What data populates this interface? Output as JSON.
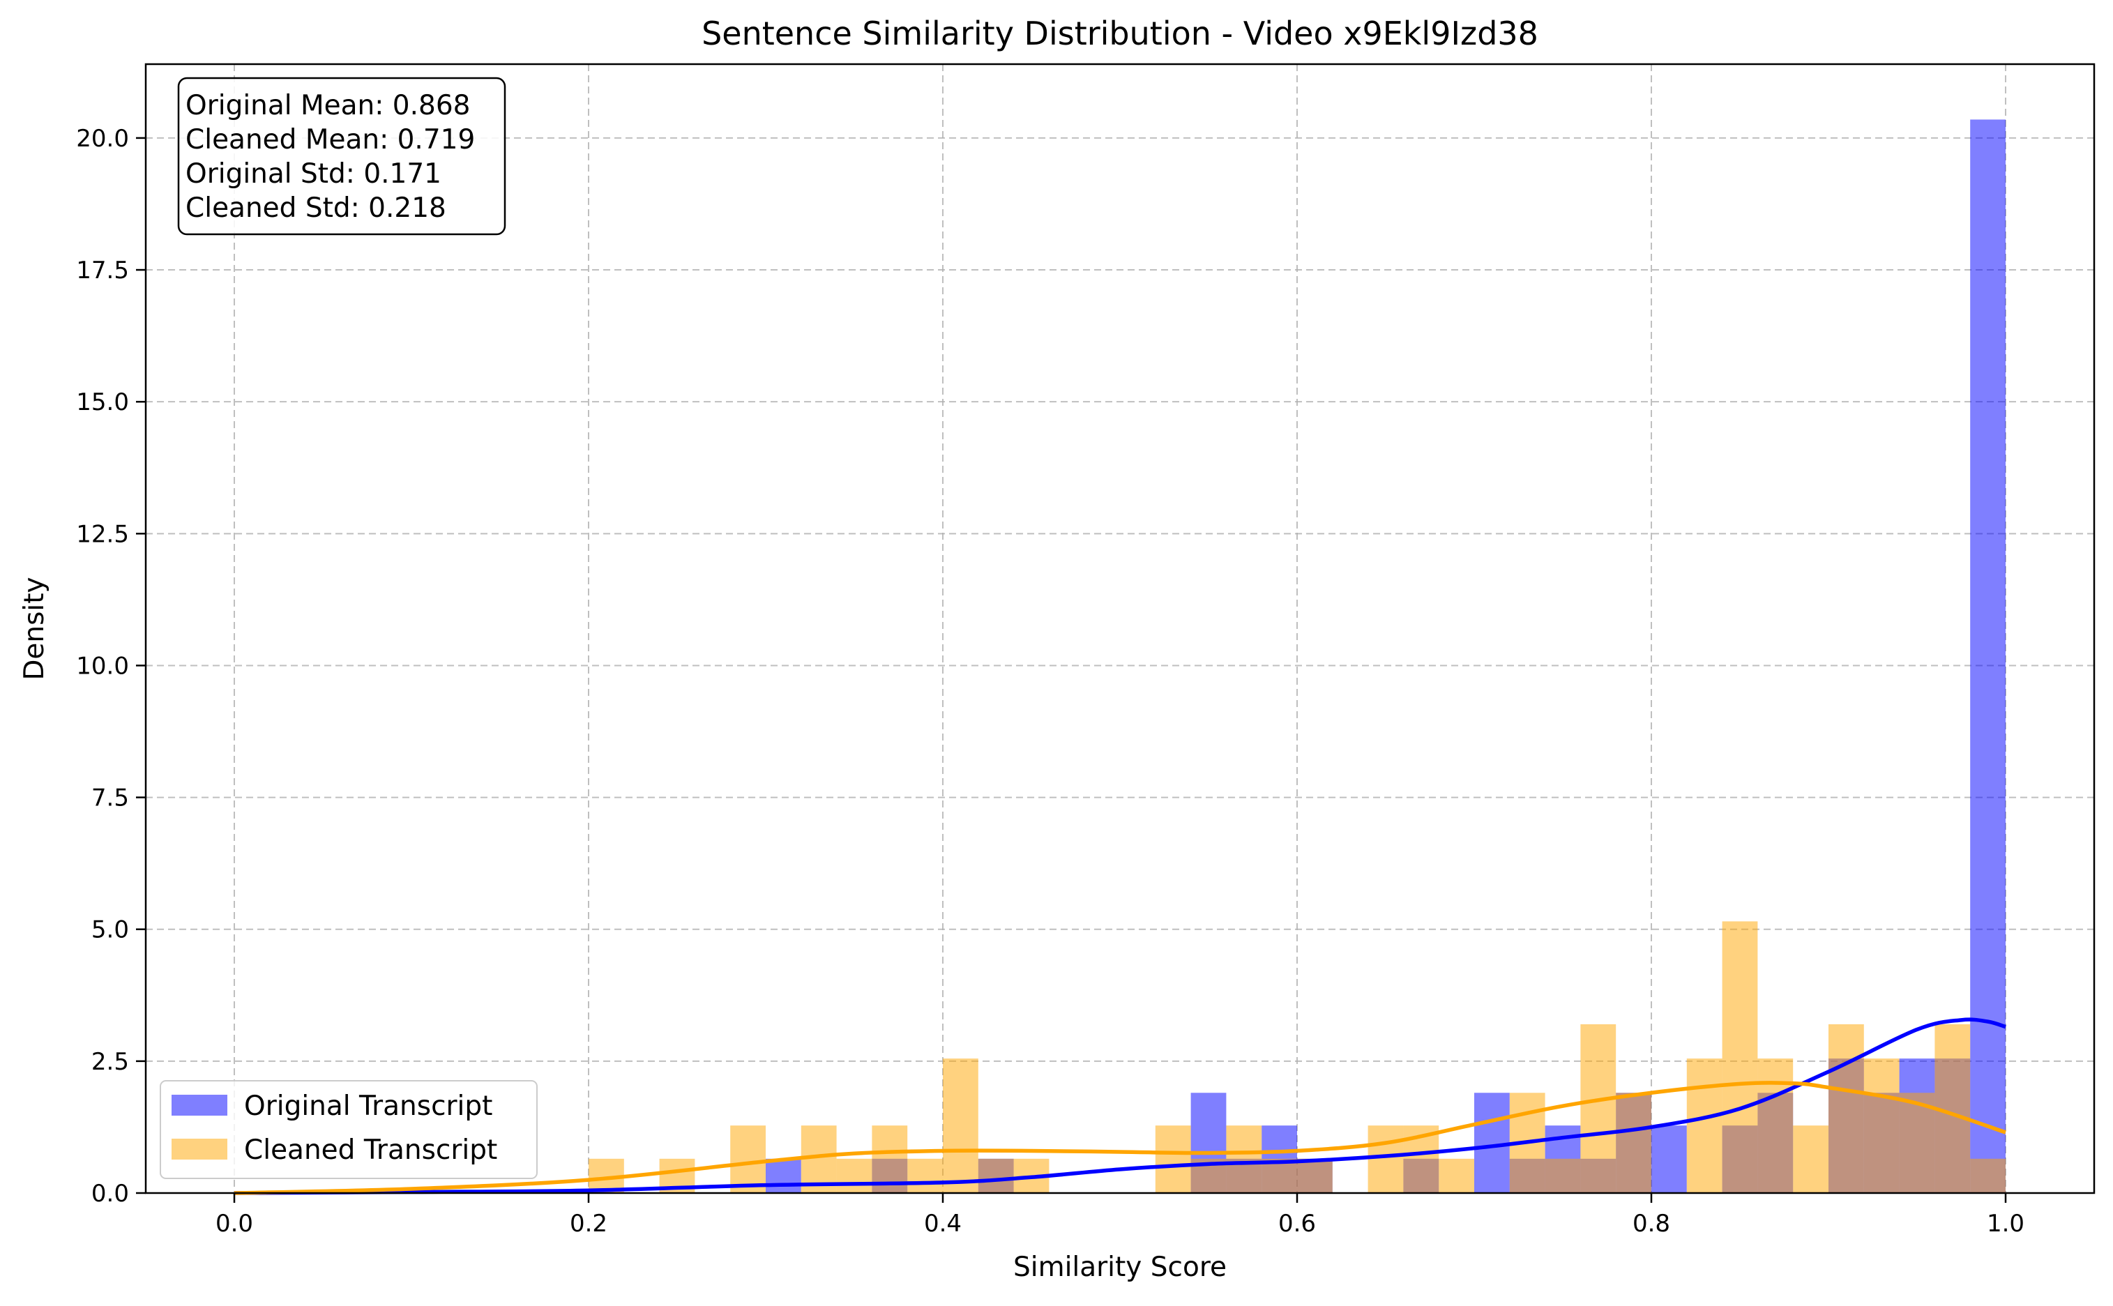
{
  "chart_data": {
    "type": "histogram",
    "title": "Sentence Similarity Distribution - Video x9Ekl9Izd38",
    "xlabel": "Similarity Score",
    "ylabel": "Density",
    "xlim": [
      -0.05,
      1.05
    ],
    "ylim": [
      0,
      21.4
    ],
    "xticks": [
      0.0,
      0.2,
      0.4,
      0.6,
      0.8,
      1.0
    ],
    "xtick_labels": [
      "0.0",
      "0.2",
      "0.4",
      "0.6",
      "0.8",
      "1.0"
    ],
    "yticks": [
      0,
      2.5,
      5,
      7.5,
      10,
      12.5,
      15,
      17.5,
      20
    ],
    "ytick_labels": [
      "0.0",
      "2.5",
      "5.0",
      "7.5",
      "10.0",
      "12.5",
      "15.0",
      "17.5",
      "20.0"
    ],
    "grid": true,
    "legend_position": "lower-left",
    "bin_width": 0.02,
    "stats_box": [
      "Original Mean: 0.868",
      "Cleaned Mean: 0.719",
      "Original Std: 0.171",
      "Cleaned Std: 0.218"
    ],
    "series": [
      {
        "name": "Original Transcript",
        "color": "#0000ff",
        "kde_color": "#0000ff",
        "bins": [
          [
            0.3,
            0.65
          ],
          [
            0.36,
            0.65
          ],
          [
            0.42,
            0.65
          ],
          [
            0.54,
            1.9
          ],
          [
            0.56,
            0.65
          ],
          [
            0.58,
            1.28
          ],
          [
            0.6,
            0.65
          ],
          [
            0.66,
            0.65
          ],
          [
            0.7,
            1.9
          ],
          [
            0.72,
            0.65
          ],
          [
            0.74,
            1.28
          ],
          [
            0.76,
            0.65
          ],
          [
            0.78,
            1.9
          ],
          [
            0.8,
            1.28
          ],
          [
            0.84,
            1.28
          ],
          [
            0.86,
            1.9
          ],
          [
            0.9,
            2.55
          ],
          [
            0.92,
            1.9
          ],
          [
            0.94,
            2.55
          ],
          [
            0.96,
            2.55
          ],
          [
            0.98,
            20.35
          ]
        ],
        "kde": [
          [
            0.0,
            0.0
          ],
          [
            0.1,
            0.02
          ],
          [
            0.2,
            0.05
          ],
          [
            0.3,
            0.15
          ],
          [
            0.4,
            0.2
          ],
          [
            0.45,
            0.3
          ],
          [
            0.5,
            0.45
          ],
          [
            0.55,
            0.55
          ],
          [
            0.6,
            0.6
          ],
          [
            0.65,
            0.7
          ],
          [
            0.7,
            0.85
          ],
          [
            0.75,
            1.05
          ],
          [
            0.8,
            1.25
          ],
          [
            0.85,
            1.6
          ],
          [
            0.9,
            2.3
          ],
          [
            0.95,
            3.1
          ],
          [
            0.975,
            3.28
          ],
          [
            0.99,
            3.25
          ],
          [
            1.0,
            3.15
          ]
        ]
      },
      {
        "name": "Cleaned Transcript",
        "color": "#ffa500",
        "kde_color": "#ffa500",
        "bins": [
          [
            0.2,
            0.65
          ],
          [
            0.24,
            0.65
          ],
          [
            0.28,
            1.28
          ],
          [
            0.32,
            1.28
          ],
          [
            0.34,
            0.65
          ],
          [
            0.36,
            1.28
          ],
          [
            0.38,
            0.65
          ],
          [
            0.4,
            2.55
          ],
          [
            0.42,
            0.65
          ],
          [
            0.44,
            0.65
          ],
          [
            0.52,
            1.28
          ],
          [
            0.54,
            0.65
          ],
          [
            0.56,
            1.28
          ],
          [
            0.58,
            0.65
          ],
          [
            0.6,
            0.65
          ],
          [
            0.64,
            1.28
          ],
          [
            0.66,
            1.28
          ],
          [
            0.68,
            0.65
          ],
          [
            0.72,
            1.9
          ],
          [
            0.74,
            0.65
          ],
          [
            0.76,
            3.2
          ],
          [
            0.78,
            1.9
          ],
          [
            0.82,
            2.55
          ],
          [
            0.84,
            5.15
          ],
          [
            0.86,
            2.55
          ],
          [
            0.88,
            1.28
          ],
          [
            0.9,
            3.2
          ],
          [
            0.92,
            2.55
          ],
          [
            0.94,
            1.9
          ],
          [
            0.96,
            3.2
          ],
          [
            0.98,
            0.65
          ]
        ],
        "kde": [
          [
            0.0,
            0.0
          ],
          [
            0.1,
            0.08
          ],
          [
            0.2,
            0.25
          ],
          [
            0.3,
            0.6
          ],
          [
            0.35,
            0.75
          ],
          [
            0.4,
            0.8
          ],
          [
            0.45,
            0.8
          ],
          [
            0.5,
            0.78
          ],
          [
            0.55,
            0.76
          ],
          [
            0.6,
            0.8
          ],
          [
            0.65,
            0.95
          ],
          [
            0.7,
            1.3
          ],
          [
            0.75,
            1.65
          ],
          [
            0.8,
            1.9
          ],
          [
            0.85,
            2.07
          ],
          [
            0.88,
            2.08
          ],
          [
            0.9,
            2.0
          ],
          [
            0.95,
            1.7
          ],
          [
            1.0,
            1.15
          ]
        ]
      }
    ]
  }
}
